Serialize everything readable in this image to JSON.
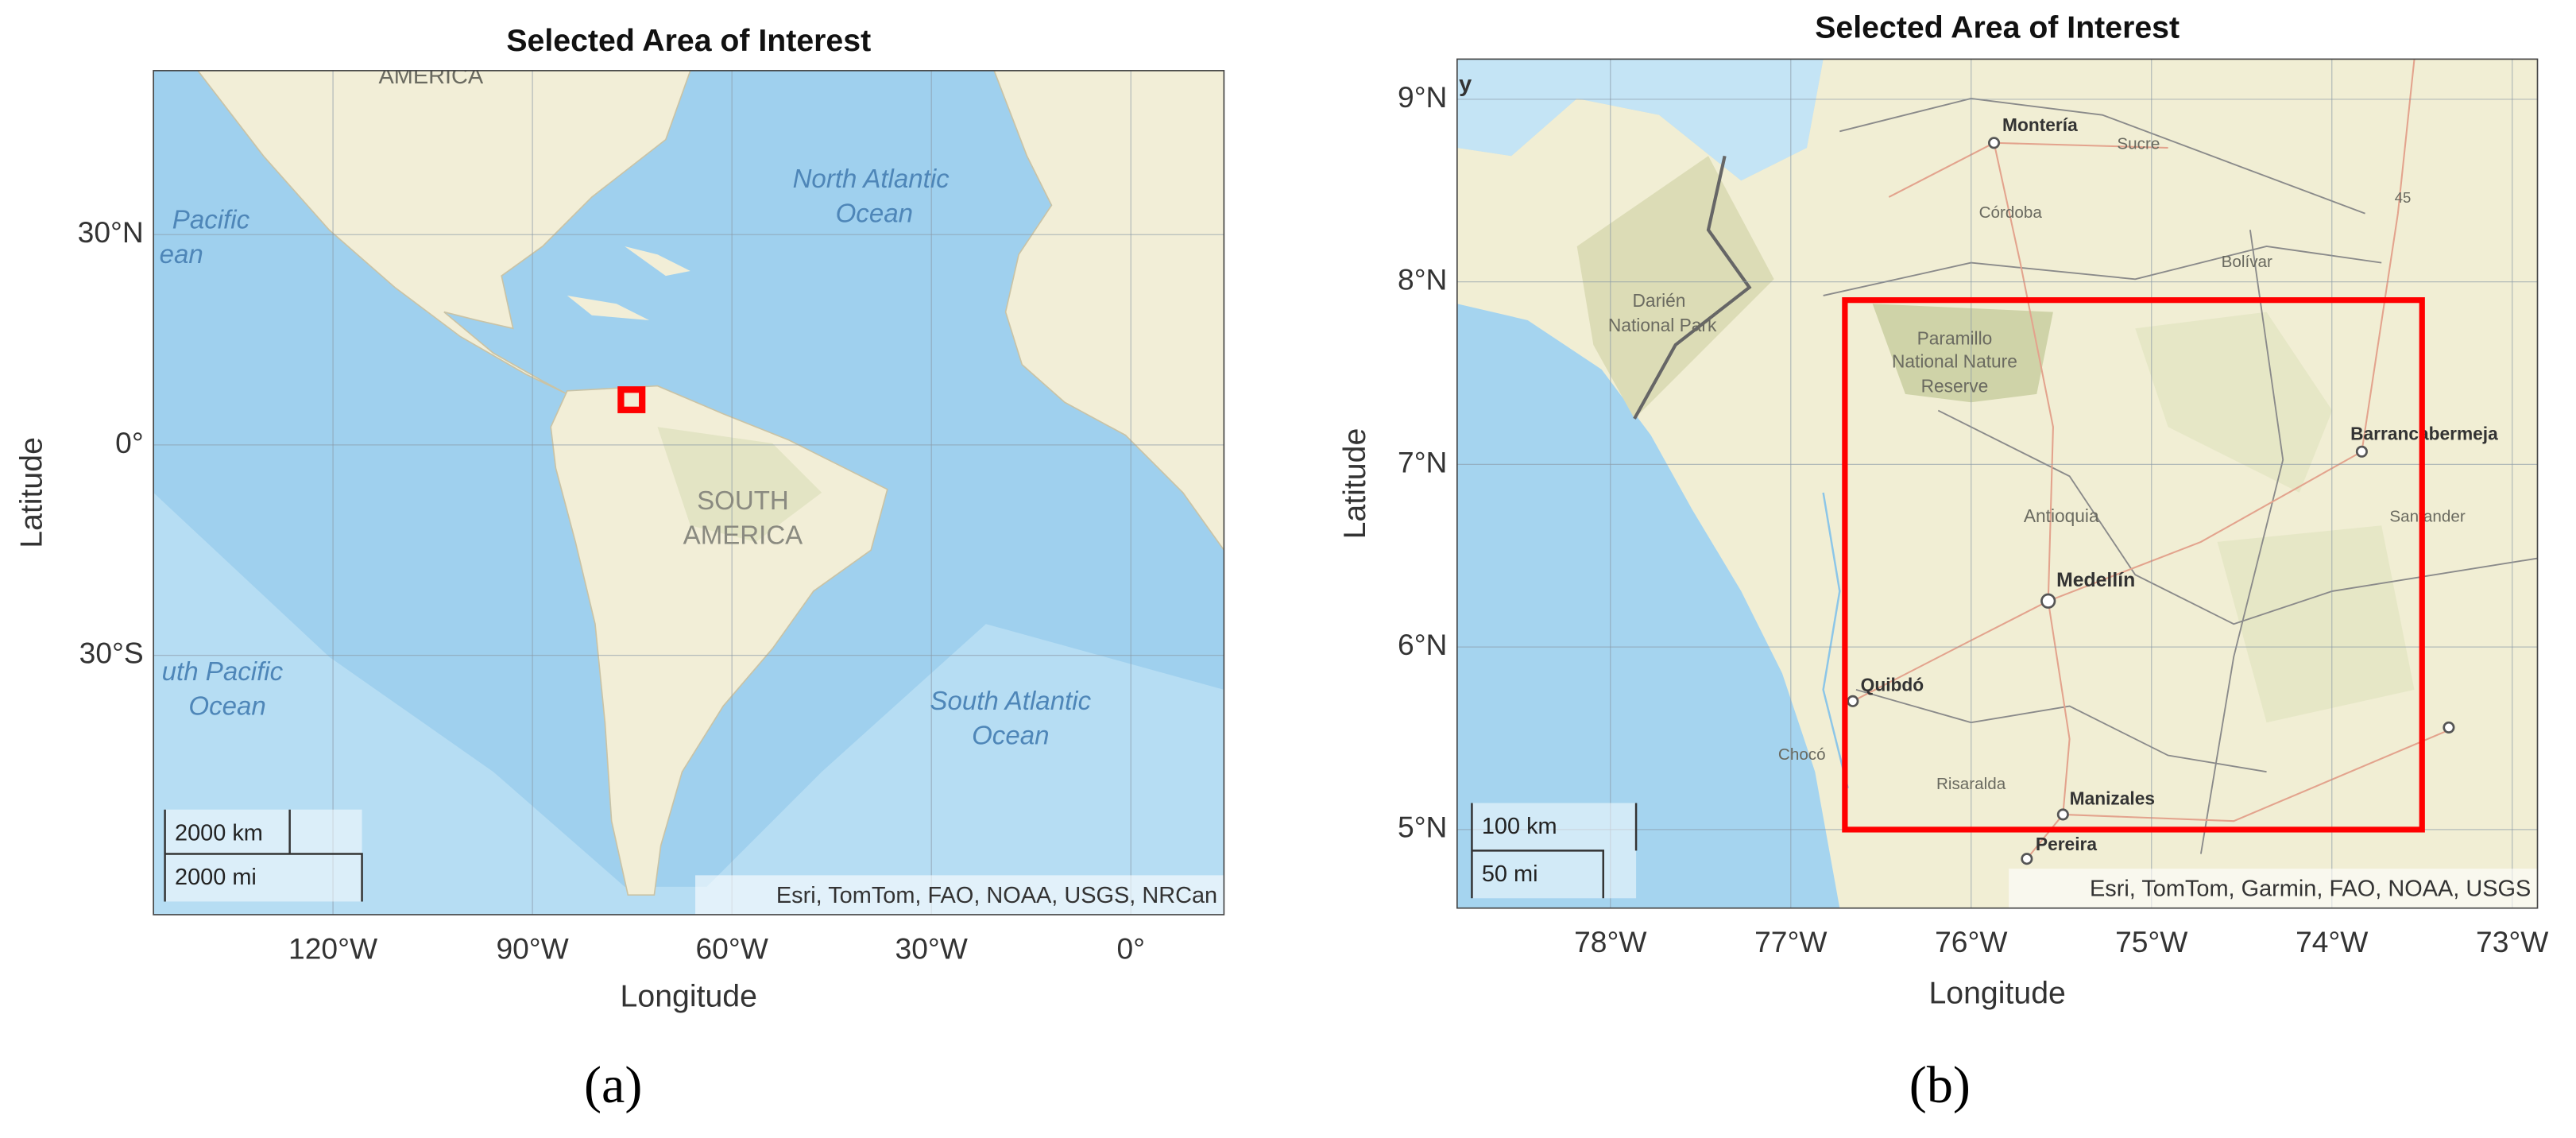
{
  "panels": [
    {
      "title": "Selected Area of Interest",
      "xlabel": "Longitude",
      "ylabel": "Latitude",
      "xlim": [
        -147,
        14
      ],
      "ylim": [
        -67,
        53.4
      ],
      "xticks": [
        {
          "value": -120,
          "label": "120°W"
        },
        {
          "value": -90,
          "label": "90°W"
        },
        {
          "value": -60,
          "label": "60°W"
        },
        {
          "value": -30,
          "label": "30°W"
        },
        {
          "value": 0,
          "label": "0°"
        }
      ],
      "yticks": [
        {
          "value": -30,
          "label": "30°S"
        },
        {
          "value": 0,
          "label": "0°"
        },
        {
          "value": 30,
          "label": "30°N"
        }
      ],
      "aoi": {
        "lon": [
          -76.7,
          -73.5
        ],
        "lat": [
          5.0,
          7.9
        ],
        "color": "#ff0000"
      },
      "places": [
        "AMERICA",
        "Pacific",
        "ean",
        "North Atlantic",
        "Ocean",
        "SOUTH",
        "AMERICA",
        "uth Pacific",
        "Ocean",
        "South Atlantic",
        "Ocean"
      ],
      "scale_bars": [
        "2000 km",
        "2000 mi"
      ],
      "attribution": "Esri, TomTom, FAO, NOAA, USGS, NRCan",
      "caption": "(a)"
    },
    {
      "title": "Selected Area of Interest",
      "xlabel": "Longitude",
      "ylabel": "Latitude",
      "xlim": [
        -78.85,
        -72.86
      ],
      "ylim": [
        4.57,
        9.22
      ],
      "xticks": [
        {
          "value": -78,
          "label": "78°W"
        },
        {
          "value": -77,
          "label": "77°W"
        },
        {
          "value": -76,
          "label": "76°W"
        },
        {
          "value": -75,
          "label": "75°W"
        },
        {
          "value": -74,
          "label": "74°W"
        },
        {
          "value": -73,
          "label": "73°W"
        }
      ],
      "yticks": [
        {
          "value": 5,
          "label": "5°N"
        },
        {
          "value": 6,
          "label": "6°N"
        },
        {
          "value": 7,
          "label": "7°N"
        },
        {
          "value": 8,
          "label": "8°N"
        },
        {
          "value": 9,
          "label": "9°N"
        }
      ],
      "aoi": {
        "lon": [
          -76.7,
          -73.5
        ],
        "lat": [
          5.0,
          7.9
        ],
        "color": "#ff0000"
      },
      "places": [
        "y",
        "Montería",
        "Sucre",
        "Córdoba",
        "Bolívar",
        "Darién",
        "National Park",
        "Paramillo",
        "National Nature",
        "Reserve",
        "Antioquia",
        "Medellín",
        "Barrancabermeja",
        "Santander",
        "Quibdó",
        "Chocó",
        "Risaralda",
        "Manizales",
        "Pereira",
        "45"
      ],
      "scale_bars": [
        "100 km",
        "50 mi"
      ],
      "attribution": "Esri, TomTom, Garmin, FAO, NOAA, USGS",
      "caption": "(b)"
    }
  ]
}
